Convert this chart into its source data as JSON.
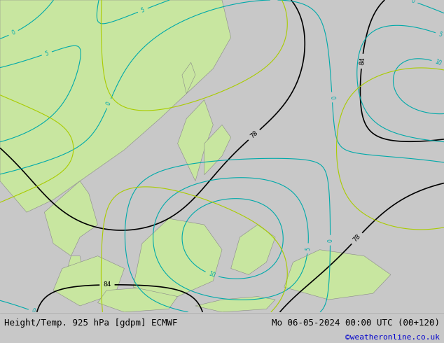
{
  "title_left": "Height/Temp. 925 hPa [gdpm] ECMWF",
  "title_right": "Mo 06-05-2024 00:00 UTC (00+120)",
  "credit": "©weatheronline.co.uk",
  "bg_color": "#c8c8c8",
  "ocean_color": "#c8c8c8",
  "land_color": "#c8e6a0",
  "land_edge_color": "#888888",
  "bottom_bar_color": "#e0e0e0",
  "fig_width": 6.34,
  "fig_height": 4.9,
  "dpi": 100,
  "title_fontsize": 9,
  "credit_color": "#0000cc",
  "credit_fontsize": 8
}
